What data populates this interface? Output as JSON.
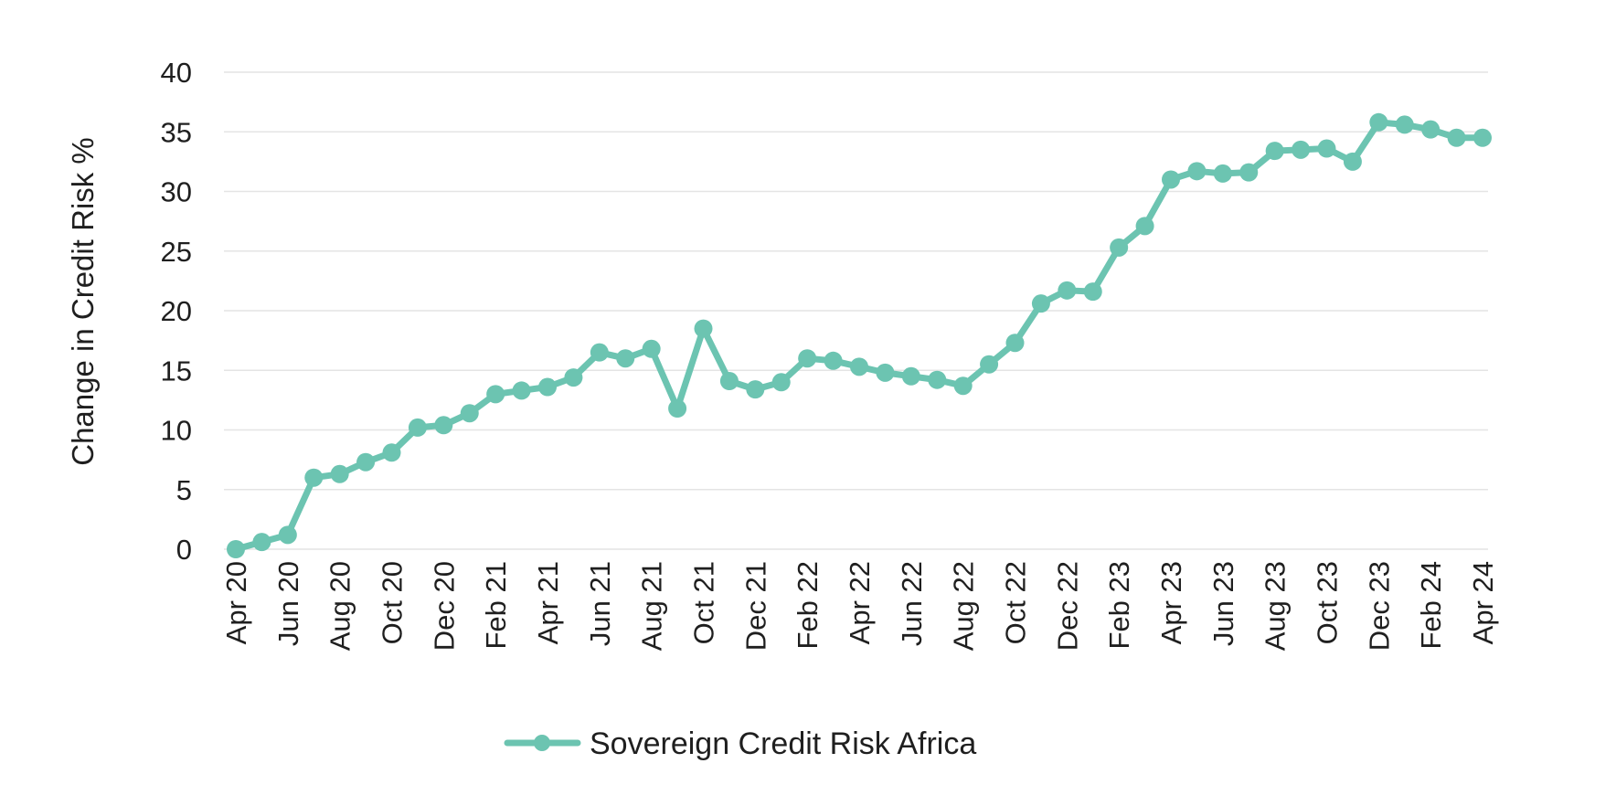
{
  "chart_data": {
    "type": "line",
    "ylabel": "Change in Credit Risk %",
    "ylim": [
      0,
      40
    ],
    "yticks": [
      0,
      5,
      10,
      15,
      20,
      25,
      30,
      35,
      40
    ],
    "grid": true,
    "legend_position": "bottom-center",
    "color": "#6cc4b1",
    "x": [
      "Apr 20",
      "May 20",
      "Jun 20",
      "Jul 20",
      "Aug 20",
      "Sep 20",
      "Oct 20",
      "Nov 20",
      "Dec 20",
      "Jan 21",
      "Feb 21",
      "Mar 21",
      "Apr 21",
      "May 21",
      "Jun 21",
      "Jul 21",
      "Aug 21",
      "Sep 21",
      "Oct 21",
      "Nov 21",
      "Dec 21",
      "Jan 22",
      "Feb 22",
      "Mar 22",
      "Apr 22",
      "May 22",
      "Jun 22",
      "Jul 22",
      "Aug 22",
      "Sep 22",
      "Oct 22",
      "Nov 22",
      "Dec 22",
      "Jan 23",
      "Feb 23",
      "Mar 23",
      "Apr 23",
      "May 23",
      "Jun 23",
      "Jul 23",
      "Aug 23",
      "Sep 23",
      "Oct 23",
      "Nov 23",
      "Dec 23",
      "Jan 24",
      "Feb 24",
      "Mar 24",
      "Apr 24"
    ],
    "xtick_labels": [
      "Apr 20",
      "Jun 20",
      "Aug 20",
      "Oct 20",
      "Dec 20",
      "Feb 21",
      "Apr 21",
      "Jun 21",
      "Aug 21",
      "Oct 21",
      "Dec 21",
      "Feb 22",
      "Apr 22",
      "Jun 22",
      "Aug 22",
      "Oct 22",
      "Dec 22",
      "Feb 23",
      "Apr 23",
      "Jun 23",
      "Aug 23",
      "Oct 23",
      "Dec 23",
      "Feb 24",
      "Apr 24"
    ],
    "series": [
      {
        "name": "Sovereign Credit Risk Africa",
        "values": [
          0,
          0.6,
          1.2,
          6.0,
          6.3,
          7.3,
          8.1,
          10.2,
          10.4,
          11.4,
          13.0,
          13.3,
          13.6,
          14.4,
          16.5,
          16.0,
          16.8,
          11.8,
          18.5,
          14.1,
          13.4,
          14.0,
          16.0,
          15.8,
          15.3,
          14.8,
          14.5,
          14.2,
          13.7,
          15.5,
          17.3,
          20.6,
          21.7,
          21.6,
          25.3,
          27.1,
          31.0,
          31.7,
          31.5,
          31.6,
          33.4,
          33.5,
          33.6,
          32.5,
          35.8,
          35.6,
          35.2,
          34.5,
          34.5
        ]
      }
    ]
  }
}
